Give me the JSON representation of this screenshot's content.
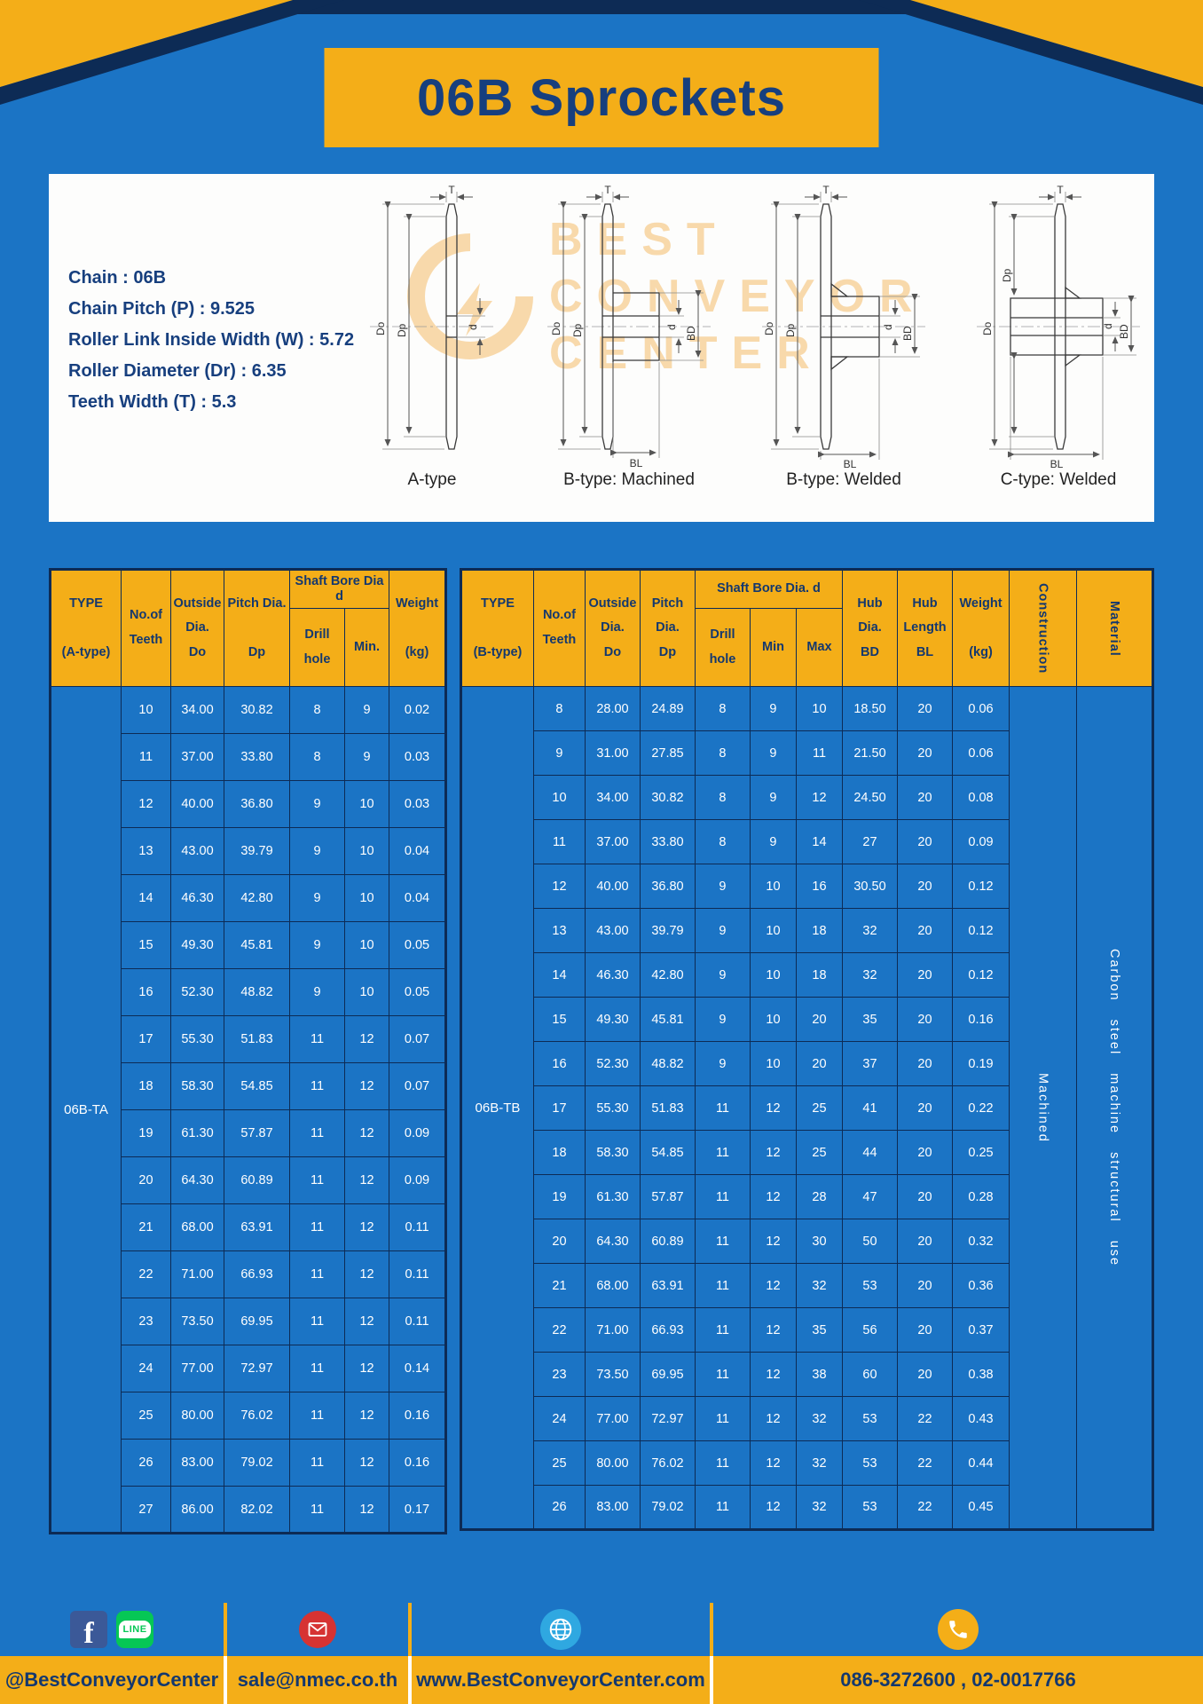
{
  "page": {
    "title": "06B Sprockets"
  },
  "panel": {
    "specs": [
      "Chain : 06B",
      "Chain Pitch (P) : 9.525",
      "Roller Link Inside Width (W) : 5.72",
      "Roller Diameter (Dr) : 6.35",
      "Teeth Width (T) : 5.3"
    ],
    "watermark": {
      "line1": "BEST",
      "line2": "CONVEYOR",
      "line3": "CENTER"
    },
    "diagrams": [
      {
        "caption": "A-type",
        "labels": {
          "T": "T",
          "Do": "Do",
          "Dp": "Dp",
          "d": "d"
        }
      },
      {
        "caption": "B-type: Machined",
        "labels": {
          "T": "T",
          "Do": "Do",
          "Dp": "Dp",
          "d": "d",
          "BD": "BD",
          "BL": "BL"
        }
      },
      {
        "caption": "B-type: Welded",
        "labels": {
          "T": "T",
          "Do": "Do",
          "Dp": "Dp",
          "d": "d",
          "BD": "BD",
          "BL": "BL"
        }
      },
      {
        "caption": "C-type: Welded",
        "labels": {
          "T": "T",
          "Do": "Do",
          "Dp": "Dp",
          "d": "d",
          "BD": "BD",
          "BL": "BL"
        }
      }
    ]
  },
  "table_a": {
    "header": {
      "type": "TYPE\n\n(A-type)",
      "teeth": "No.of\nTeeth",
      "outside": "Outside\nDia.\nDo",
      "pitch": "Pitch Dia.\n\nDp",
      "shaft": "Shaft Bore Dia d",
      "drill": "Drill hole",
      "min": "Min.",
      "weight": "Weight\n\n(kg)"
    },
    "type_value": "06B-TA",
    "rows": [
      [
        "10",
        "34.00",
        "30.82",
        "8",
        "9",
        "0.02"
      ],
      [
        "11",
        "37.00",
        "33.80",
        "8",
        "9",
        "0.03"
      ],
      [
        "12",
        "40.00",
        "36.80",
        "9",
        "10",
        "0.03"
      ],
      [
        "13",
        "43.00",
        "39.79",
        "9",
        "10",
        "0.04"
      ],
      [
        "14",
        "46.30",
        "42.80",
        "9",
        "10",
        "0.04"
      ],
      [
        "15",
        "49.30",
        "45.81",
        "9",
        "10",
        "0.05"
      ],
      [
        "16",
        "52.30",
        "48.82",
        "9",
        "10",
        "0.05"
      ],
      [
        "17",
        "55.30",
        "51.83",
        "11",
        "12",
        "0.07"
      ],
      [
        "18",
        "58.30",
        "54.85",
        "11",
        "12",
        "0.07"
      ],
      [
        "19",
        "61.30",
        "57.87",
        "11",
        "12",
        "0.09"
      ],
      [
        "20",
        "64.30",
        "60.89",
        "11",
        "12",
        "0.09"
      ],
      [
        "21",
        "68.00",
        "63.91",
        "11",
        "12",
        "0.11"
      ],
      [
        "22",
        "71.00",
        "66.93",
        "11",
        "12",
        "0.11"
      ],
      [
        "23",
        "73.50",
        "69.95",
        "11",
        "12",
        "0.11"
      ],
      [
        "24",
        "77.00",
        "72.97",
        "11",
        "12",
        "0.14"
      ],
      [
        "25",
        "80.00",
        "76.02",
        "11",
        "12",
        "0.16"
      ],
      [
        "26",
        "83.00",
        "79.02",
        "11",
        "12",
        "0.16"
      ],
      [
        "27",
        "86.00",
        "82.02",
        "11",
        "12",
        "0.17"
      ]
    ]
  },
  "table_b": {
    "header": {
      "type": "TYPE\n\n(B-type)",
      "teeth": "No.of\nTeeth",
      "outside": "Outside\nDia.\nDo",
      "pitch": "Pitch\nDia.\nDp",
      "shaft": "Shaft Bore Dia. d",
      "drill": "Drill hole",
      "min": "Min",
      "max": "Max",
      "hub_dia": "Hub\nDia.\nBD",
      "hub_length": "Hub\nLength\nBL",
      "weight": "Weight\n\n(kg)",
      "construction": "Construction",
      "material": "Material"
    },
    "type_value": "06B-TB",
    "construction_value": "Machined",
    "material_value": "Carbon steel machine structural use",
    "rows": [
      [
        "8",
        "28.00",
        "24.89",
        "8",
        "9",
        "10",
        "18.50",
        "20",
        "0.06"
      ],
      [
        "9",
        "31.00",
        "27.85",
        "8",
        "9",
        "11",
        "21.50",
        "20",
        "0.06"
      ],
      [
        "10",
        "34.00",
        "30.82",
        "8",
        "9",
        "12",
        "24.50",
        "20",
        "0.08"
      ],
      [
        "11",
        "37.00",
        "33.80",
        "8",
        "9",
        "14",
        "27",
        "20",
        "0.09"
      ],
      [
        "12",
        "40.00",
        "36.80",
        "9",
        "10",
        "16",
        "30.50",
        "20",
        "0.12"
      ],
      [
        "13",
        "43.00",
        "39.79",
        "9",
        "10",
        "18",
        "32",
        "20",
        "0.12"
      ],
      [
        "14",
        "46.30",
        "42.80",
        "9",
        "10",
        "18",
        "32",
        "20",
        "0.12"
      ],
      [
        "15",
        "49.30",
        "45.81",
        "9",
        "10",
        "20",
        "35",
        "20",
        "0.16"
      ],
      [
        "16",
        "52.30",
        "48.82",
        "9",
        "10",
        "20",
        "37",
        "20",
        "0.19"
      ],
      [
        "17",
        "55.30",
        "51.83",
        "11",
        "12",
        "25",
        "41",
        "20",
        "0.22"
      ],
      [
        "18",
        "58.30",
        "54.85",
        "11",
        "12",
        "25",
        "44",
        "20",
        "0.25"
      ],
      [
        "19",
        "61.30",
        "57.87",
        "11",
        "12",
        "28",
        "47",
        "20",
        "0.28"
      ],
      [
        "20",
        "64.30",
        "60.89",
        "11",
        "12",
        "30",
        "50",
        "20",
        "0.32"
      ],
      [
        "21",
        "68.00",
        "63.91",
        "11",
        "12",
        "32",
        "53",
        "20",
        "0.36"
      ],
      [
        "22",
        "71.00",
        "66.93",
        "11",
        "12",
        "35",
        "56",
        "20",
        "0.37"
      ],
      [
        "23",
        "73.50",
        "69.95",
        "11",
        "12",
        "38",
        "60",
        "20",
        "0.38"
      ],
      [
        "24",
        "77.00",
        "72.97",
        "11",
        "12",
        "32",
        "53",
        "22",
        "0.43"
      ],
      [
        "25",
        "80.00",
        "76.02",
        "11",
        "12",
        "32",
        "53",
        "22",
        "0.44"
      ],
      [
        "26",
        "83.00",
        "79.02",
        "11",
        "12",
        "32",
        "53",
        "22",
        "0.45"
      ]
    ]
  },
  "footer": {
    "facebook_label": "f",
    "line_label": "LINE",
    "sections": [
      {
        "text": "@BestConveyorCenter"
      },
      {
        "text": "sale@nmec.co.th"
      },
      {
        "text": "www.BestConveyorCenter.com"
      },
      {
        "text": "086-3272600 , 02-0017766"
      }
    ]
  },
  "colors": {
    "page_blue": "#1B74C5",
    "amber": "#F4AE18",
    "navy_text": "#14386E",
    "border_navy": "#0D2B55",
    "facebook_blue": "#3B5998",
    "line_green": "#06C755",
    "mail_red": "#D63333",
    "globe_blue": "#2FA8E1"
  }
}
